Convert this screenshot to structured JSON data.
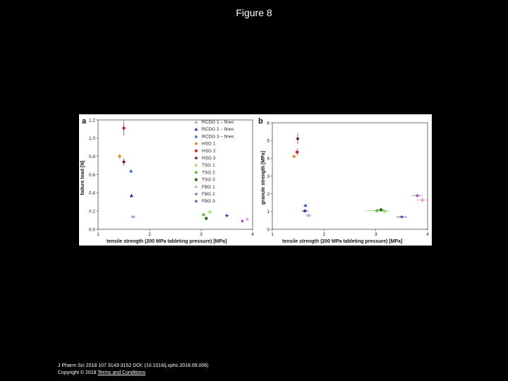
{
  "slide": {
    "title": "Figure 8",
    "citation_line1": "J Pharm Sci 2018 107 3143-3152 DOI: (10.1016/j.xphs.2018.09.006)",
    "copyright": "Copyright © 2018",
    "terms_link": "Terms and Conditions"
  },
  "chart_data": [
    {
      "panel": "a",
      "type": "scatter",
      "xlabel": "tensile strength (200 MPa tableting pressure) [MPa]",
      "ylabel": "failure load [N]",
      "xlim": [
        1,
        4
      ],
      "ylim": [
        0,
        1.2
      ],
      "xticks": [
        1,
        2,
        3,
        4
      ],
      "yticks": [
        0.0,
        0.2,
        0.4,
        0.6,
        0.8,
        1.0,
        1.2
      ],
      "legend_position": "top-right",
      "series": [
        {
          "name": "RCDG 1 – fines",
          "color": "#8fa8d8",
          "marker": "triangle",
          "x": 1.68,
          "y": 0.14,
          "xerr": 0.06,
          "yerr": 0.01
        },
        {
          "name": "RCDG 2 – fines",
          "color": "#1f1fb4",
          "marker": "triangle",
          "x": 1.65,
          "y": 0.37,
          "xerr": 0.0,
          "yerr": 0.015
        },
        {
          "name": "RCDG 3 – fines",
          "color": "#3a66b8",
          "marker": "triangle",
          "x": 1.64,
          "y": 0.64,
          "xerr": 0.0,
          "yerr": 0.015
        },
        {
          "name": "HSG 1",
          "color": "#d88a2a",
          "marker": "diamond",
          "x": 1.42,
          "y": 0.8,
          "xerr": 0.03,
          "yerr": 0.03
        },
        {
          "name": "HSG 2",
          "color": "#c0262d",
          "marker": "circle",
          "x": 1.5,
          "y": 1.11,
          "xerr": 0.0,
          "yerr": 0.08
        },
        {
          "name": "HSG 3",
          "color": "#7a1f25",
          "marker": "diamond",
          "x": 1.5,
          "y": 0.74,
          "xerr": 0.02,
          "yerr": 0.04
        },
        {
          "name": "TSG 1",
          "color": "#a8e07a",
          "marker": "circle",
          "x": 3.17,
          "y": 0.19,
          "xerr": 0.04,
          "yerr": 0.01
        },
        {
          "name": "TSG 2",
          "color": "#6ab83a",
          "marker": "circle",
          "x": 3.05,
          "y": 0.16,
          "xerr": 0.0,
          "yerr": 0.01
        },
        {
          "name": "TSG 3",
          "color": "#2f6a1f",
          "marker": "circle",
          "x": 3.1,
          "y": 0.12,
          "xerr": 0.0,
          "yerr": 0.01
        },
        {
          "name": "FBG 1",
          "color": "#e58ad6",
          "marker": "star",
          "x": 3.9,
          "y": 0.11,
          "xerr": 0.02,
          "yerr": 0.01
        },
        {
          "name": "FBG 2",
          "color": "#9b3fb0",
          "marker": "star",
          "x": 3.8,
          "y": 0.09,
          "xerr": 0.02,
          "yerr": 0.01
        },
        {
          "name": "FBG 3",
          "color": "#3f2fa0",
          "marker": "star",
          "x": 3.5,
          "y": 0.15,
          "xerr": 0.03,
          "yerr": 0.01
        }
      ]
    },
    {
      "panel": "b",
      "type": "scatter",
      "xlabel": "tensile strength (200 MPa tableting pressure) [MPa]",
      "ylabel": "granule strength [MPa]",
      "xlim": [
        1,
        4
      ],
      "ylim": [
        0,
        6
      ],
      "xticks": [
        1,
        2,
        3,
        4
      ],
      "yticks": [
        0,
        1,
        2,
        3,
        4,
        5,
        6
      ],
      "series": [
        {
          "name": "RCDG 1 – fines",
          "color": "#8fa8d8",
          "marker": "triangle",
          "x": 1.7,
          "y": 0.8,
          "xerr": 0.06,
          "yerr": 0.05
        },
        {
          "name": "RCDG 2 – fines",
          "color": "#1f1fb4",
          "marker": "triangle",
          "x": 1.63,
          "y": 1.05,
          "xerr": 0.06,
          "yerr": 0.06
        },
        {
          "name": "RCDG 3 – fines",
          "color": "#3a66b8",
          "marker": "triangle",
          "x": 1.64,
          "y": 1.35,
          "xerr": 0.04,
          "yerr": 0.08
        },
        {
          "name": "HSG 1",
          "color": "#d88a2a",
          "marker": "diamond",
          "x": 1.42,
          "y": 4.1,
          "xerr": 0.04,
          "yerr": 0.1
        },
        {
          "name": "HSG 2",
          "color": "#c0262d",
          "marker": "circle",
          "x": 1.48,
          "y": 4.35,
          "xerr": 0.04,
          "yerr": 0.2
        },
        {
          "name": "HSG 3",
          "color": "#7a1f25",
          "marker": "diamond",
          "x": 1.49,
          "y": 5.1,
          "xerr": 0.02,
          "yerr": 0.3
        },
        {
          "name": "TSG 1",
          "color": "#a8e07a",
          "marker": "circle",
          "x": 3.17,
          "y": 1.0,
          "xerr": 0.1,
          "yerr": 0.05
        },
        {
          "name": "TSG 2",
          "color": "#6ab83a",
          "marker": "circle",
          "x": 3.02,
          "y": 1.05,
          "xerr": 0.2,
          "yerr": 0.05
        },
        {
          "name": "TSG 3",
          "color": "#2f6a1f",
          "marker": "circle",
          "x": 3.1,
          "y": 1.1,
          "xerr": 0.06,
          "yerr": 0.05
        },
        {
          "name": "FBG 1",
          "color": "#e58ad6",
          "marker": "star",
          "x": 3.9,
          "y": 1.65,
          "xerr": 0.12,
          "yerr": 0.15
        },
        {
          "name": "FBG 2",
          "color": "#9b3fb0",
          "marker": "star",
          "x": 3.8,
          "y": 1.9,
          "xerr": 0.1,
          "yerr": 0.1
        },
        {
          "name": "FBG 3",
          "color": "#3f2fa0",
          "marker": "star",
          "x": 3.5,
          "y": 0.7,
          "xerr": 0.1,
          "yerr": 0.05
        }
      ]
    }
  ]
}
